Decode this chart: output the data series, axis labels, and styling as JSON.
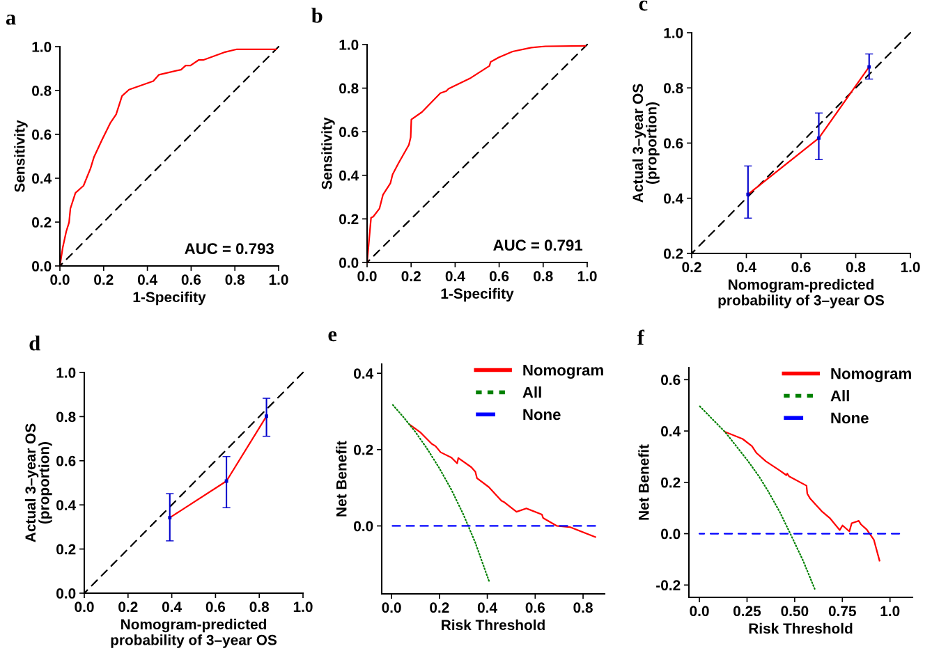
{
  "chart_data": [
    {
      "type": "line",
      "title": "a",
      "xlabel": "1-Specifity",
      "ylabel": "Sensitivity",
      "xlim": [
        0,
        1
      ],
      "ylim": [
        0,
        1
      ],
      "xticks": [
        {
          "value": 0,
          "label": "0.0"
        },
        {
          "value": 0.2,
          "label": "0.2"
        },
        {
          "value": 0.4,
          "label": "0.4"
        },
        {
          "value": 0.6,
          "label": "0.6"
        },
        {
          "value": 0.8,
          "label": "0.8"
        },
        {
          "value": 1,
          "label": "1.0"
        }
      ],
      "yticks": [
        {
          "value": 0,
          "label": "0.0"
        },
        {
          "value": 0.2,
          "label": "0.2"
        },
        {
          "value": 0.4,
          "label": "0.4"
        },
        {
          "value": 0.6,
          "label": "0.6"
        },
        {
          "value": 0.8,
          "label": "0.8"
        },
        {
          "value": 1,
          "label": "1.0"
        }
      ],
      "grid": false,
      "legend": false,
      "annotations": [
        "AUC = 0.793"
      ],
      "series": [
        {
          "type": "line",
          "color": "#000000",
          "line_style": "dashed",
          "x": [
            0,
            1
          ],
          "values": [
            0,
            1
          ]
        },
        {
          "type": "line",
          "color": "#ff0000",
          "line_style": "solid",
          "x": [
            0,
            0.013,
            0.029,
            0.042,
            0.048,
            0.071,
            0.108,
            0.14,
            0.156,
            0.193,
            0.23,
            0.257,
            0.284,
            0.316,
            0.427,
            0.453,
            0.554,
            0.575,
            0.597,
            0.634,
            0.655,
            0.751,
            0.809,
            0.99
          ],
          "values": [
            0,
            0.084,
            0.157,
            0.199,
            0.262,
            0.333,
            0.366,
            0.445,
            0.497,
            0.576,
            0.651,
            0.691,
            0.775,
            0.804,
            0.843,
            0.872,
            0.895,
            0.914,
            0.914,
            0.939,
            0.939,
            0.974,
            0.988,
            0.988
          ]
        }
      ]
    },
    {
      "type": "line",
      "title": "b",
      "xlabel": "1-Specifity",
      "ylabel": "Sensitivity",
      "xlim": [
        0,
        1
      ],
      "ylim": [
        0,
        1
      ],
      "xticks": [
        {
          "value": 0,
          "label": "0.0"
        },
        {
          "value": 0.2,
          "label": "0.2"
        },
        {
          "value": 0.4,
          "label": "0.4"
        },
        {
          "value": 0.6,
          "label": "0.6"
        },
        {
          "value": 0.8,
          "label": "0.8"
        },
        {
          "value": 1,
          "label": "1.0"
        }
      ],
      "yticks": [
        {
          "value": 0,
          "label": "0.0"
        },
        {
          "value": 0.2,
          "label": "0.2"
        },
        {
          "value": 0.4,
          "label": "0.4"
        },
        {
          "value": 0.6,
          "label": "0.6"
        },
        {
          "value": 0.8,
          "label": "0.8"
        },
        {
          "value": 1,
          "label": "1.0"
        }
      ],
      "grid": false,
      "legend": false,
      "annotations": [
        "AUC = 0.791"
      ],
      "series": [
        {
          "type": "line",
          "color": "#000000",
          "line_style": "dashed",
          "x": [
            0,
            1
          ],
          "values": [
            0,
            1
          ]
        },
        {
          "type": "line",
          "color": "#ff0000",
          "line_style": "solid",
          "x": [
            0,
            0.018,
            0.028,
            0.056,
            0.072,
            0.106,
            0.116,
            0.143,
            0.19,
            0.198,
            0.201,
            0.249,
            0.333,
            0.36,
            0.37,
            0.471,
            0.556,
            0.561,
            0.598,
            0.661,
            0.746,
            0.81,
            0.99
          ],
          "values": [
            0,
            0.205,
            0.21,
            0.247,
            0.31,
            0.364,
            0.404,
            0.456,
            0.54,
            0.574,
            0.656,
            0.69,
            0.777,
            0.787,
            0.797,
            0.847,
            0.902,
            0.92,
            0.941,
            0.968,
            0.986,
            0.992,
            0.994
          ]
        }
      ]
    },
    {
      "type": "line",
      "title": "c",
      "xlabel": "Nomogram-predicted\nprobability of 3–year OS",
      "ylabel": "Actual 3–year OS\n(proportion)",
      "xlim": [
        0.2,
        1
      ],
      "ylim": [
        0.2,
        1
      ],
      "xticks": [
        {
          "value": 0.2,
          "label": "0.2"
        },
        {
          "value": 0.4,
          "label": "0.4"
        },
        {
          "value": 0.6,
          "label": "0.6"
        },
        {
          "value": 0.8,
          "label": "0.8"
        },
        {
          "value": 1,
          "label": "1.0"
        }
      ],
      "yticks": [
        {
          "value": 0.2,
          "label": "0.2"
        },
        {
          "value": 0.4,
          "label": "0.4"
        },
        {
          "value": 0.6,
          "label": "0.6"
        },
        {
          "value": 0.8,
          "label": "0.8"
        },
        {
          "value": 1,
          "label": "1.0"
        }
      ],
      "grid": false,
      "legend": false,
      "series": [
        {
          "type": "line",
          "color": "#000000",
          "line_style": "dashed",
          "x": [
            0.2,
            1
          ],
          "values": [
            0.2,
            1
          ]
        },
        {
          "type": "line",
          "color": "#ff0000",
          "line_style": "solid",
          "x": [
            0.406,
            0.665,
            0.849
          ],
          "values": [
            0.414,
            0.618,
            0.876
          ]
        },
        {
          "type": "scatter",
          "color": "#0000cc",
          "marker": "square",
          "x": [
            0.406,
            0.665,
            0.849
          ],
          "values": [
            0.414,
            0.618,
            0.876
          ],
          "errors": [
            [
              0.328,
              0.517
            ],
            [
              0.54,
              0.709
            ],
            [
              0.832,
              0.923
            ]
          ]
        }
      ]
    },
    {
      "type": "line",
      "title": "d",
      "xlabel": "Nomogram-predicted\nprobability of 3–year OS",
      "ylabel": "Actual 3–year OS\n(proportion)",
      "xlim": [
        0,
        1
      ],
      "ylim": [
        0,
        1
      ],
      "xticks": [
        {
          "value": 0,
          "label": "0.0"
        },
        {
          "value": 0.2,
          "label": "0.2"
        },
        {
          "value": 0.4,
          "label": "0.4"
        },
        {
          "value": 0.6,
          "label": "0.6"
        },
        {
          "value": 0.8,
          "label": "0.8"
        },
        {
          "value": 1,
          "label": "1.0"
        }
      ],
      "yticks": [
        {
          "value": 0,
          "label": "0.0"
        },
        {
          "value": 0.2,
          "label": "0.2"
        },
        {
          "value": 0.4,
          "label": "0.4"
        },
        {
          "value": 0.6,
          "label": "0.6"
        },
        {
          "value": 0.8,
          "label": "0.8"
        },
        {
          "value": 1,
          "label": "1.0"
        }
      ],
      "grid": false,
      "legend": false,
      "series": [
        {
          "type": "line",
          "color": "#000000",
          "line_style": "dashed",
          "x": [
            0,
            1
          ],
          "values": [
            0,
            1
          ]
        },
        {
          "type": "line",
          "color": "#ff0000",
          "line_style": "solid",
          "x": [
            0.391,
            0.65,
            0.833
          ],
          "values": [
            0.342,
            0.508,
            0.802
          ]
        },
        {
          "type": "scatter",
          "color": "#0000cc",
          "marker": "square",
          "x": [
            0.391,
            0.65,
            0.833
          ],
          "values": [
            0.342,
            0.508,
            0.802
          ],
          "errors": [
            [
              0.237,
              0.451
            ],
            [
              0.387,
              0.619
            ],
            [
              0.711,
              0.883
            ]
          ]
        }
      ]
    },
    {
      "type": "line",
      "title": "e",
      "xlabel": "Risk Threshold",
      "ylabel": "Net Benefit",
      "xlim": [
        -0.041,
        0.89
      ],
      "ylim": [
        -0.178,
        0.424
      ],
      "xticks": [
        {
          "value": 0,
          "label": "0.0"
        },
        {
          "value": 0.2,
          "label": "0.2"
        },
        {
          "value": 0.4,
          "label": "0.4"
        },
        {
          "value": 0.6,
          "label": "0.6"
        },
        {
          "value": 0.8,
          "label": "0.8"
        }
      ],
      "yticks": [
        {
          "value": 0,
          "label": "0.0"
        },
        {
          "value": 0.2,
          "label": "0.2"
        },
        {
          "value": 0.4,
          "label": "0.4"
        }
      ],
      "grid": false,
      "legend": "top right",
      "series": [
        {
          "type": "line",
          "name": "Nomogram",
          "color": "#ff0000",
          "line_style": "solid",
          "x": [
            0.079,
            0.119,
            0.168,
            0.184,
            0.205,
            0.25,
            0.274,
            0.279,
            0.333,
            0.35,
            0.357,
            0.406,
            0.459,
            0.469,
            0.522,
            0.563,
            0.628,
            0.633,
            0.691,
            0.745,
            0.851
          ],
          "values": [
            0.264,
            0.246,
            0.215,
            0.209,
            0.193,
            0.179,
            0.164,
            0.178,
            0.154,
            0.142,
            0.125,
            0.102,
            0.066,
            0.063,
            0.037,
            0.046,
            0.03,
            0.021,
            0,
            -0.003,
            -0.029
          ]
        },
        {
          "type": "line",
          "name": "All",
          "color": "#008000",
          "line_style": "dotted",
          "x": [
            0,
            0.05,
            0.1,
            0.15,
            0.2,
            0.25,
            0.3,
            0.35,
            0.4,
            0.407
          ],
          "values": [
            0.321,
            0.285,
            0.246,
            0.201,
            0.151,
            0.095,
            0.03,
            -0.044,
            -0.132,
            -0.144
          ]
        },
        {
          "type": "line",
          "name": "None",
          "color": "#0000ff",
          "line_style": "dashed",
          "x": [
            0,
            0.851
          ],
          "values": [
            0,
            0
          ]
        }
      ]
    },
    {
      "type": "line",
      "title": "f",
      "xlabel": "Risk Threshold",
      "ylabel": "Net Benefit",
      "xlim": [
        -0.055,
        1.118
      ],
      "ylim": [
        -0.248,
        0.647
      ],
      "xticks": [
        {
          "value": 0,
          "label": "0.0"
        },
        {
          "value": 0.25,
          "label": "0.25"
        },
        {
          "value": 0.5,
          "label": "0.50"
        },
        {
          "value": 0.75,
          "label": "0.75"
        },
        {
          "value": 1,
          "label": "1.0"
        }
      ],
      "yticks": [
        {
          "value": -0.2,
          "label": "-0.2"
        },
        {
          "value": 0,
          "label": "0.0"
        },
        {
          "value": 0.2,
          "label": "0.2"
        },
        {
          "value": 0.4,
          "label": "0.4"
        },
        {
          "value": 0.6,
          "label": "0.6"
        }
      ],
      "grid": false,
      "legend": "top right",
      "series": [
        {
          "type": "line",
          "name": "Nomogram",
          "color": "#ff0000",
          "line_style": "solid",
          "x": [
            0.134,
            0.227,
            0.276,
            0.3,
            0.349,
            0.422,
            0.456,
            0.461,
            0.471,
            0.562,
            0.566,
            0.58,
            0.641,
            0.684,
            0.736,
            0.751,
            0.787,
            0.799,
            0.836,
            0.848,
            0.878,
            0.915,
            0.945
          ],
          "values": [
            0.397,
            0.369,
            0.341,
            0.314,
            0.282,
            0.246,
            0.228,
            0.234,
            0.223,
            0.187,
            0.156,
            0.138,
            0.088,
            0.061,
            0.014,
            0.032,
            0.009,
            0.041,
            0.05,
            0.036,
            0.016,
            -0.023,
            -0.105
          ]
        },
        {
          "type": "line",
          "name": "All",
          "color": "#008000",
          "line_style": "dotted",
          "x": [
            0,
            0.136,
            0.252,
            0.313,
            0.361,
            0.422,
            0.477,
            0.544,
            0.605
          ],
          "values": [
            0.498,
            0.395,
            0.286,
            0.223,
            0.165,
            0.084,
            0,
            -0.105,
            -0.215
          ]
        },
        {
          "type": "line",
          "name": "None",
          "color": "#0000ff",
          "line_style": "dashed",
          "x": [
            0,
            1.049
          ],
          "values": [
            0,
            0
          ]
        }
      ]
    }
  ]
}
